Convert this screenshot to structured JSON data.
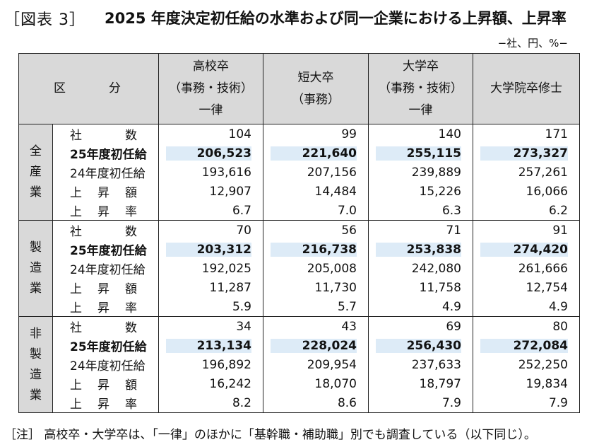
{
  "figure_label": "［図表 3］",
  "title": "2025 年度決定初任給の水準および同一企業における上昇額、上昇率",
  "unit_note": "−社、円、%−",
  "header": {
    "kubun": "区　分",
    "columns": [
      [
        "高校卒",
        "（事務・技術）",
        "一律"
      ],
      [
        "短大卒",
        "（事務）"
      ],
      [
        "大学卒",
        "（事務・技術）",
        "一律"
      ],
      [
        "大学院卒修士"
      ]
    ]
  },
  "row_labels": [
    "社数",
    "25年度初任給",
    "24年度初任給",
    "上昇額",
    "上昇率"
  ],
  "groups": [
    {
      "name": [
        "全",
        "産",
        "業"
      ],
      "rows": [
        [
          "104",
          "99",
          "140",
          "171"
        ],
        [
          "206,523",
          "221,640",
          "255,115",
          "273,327"
        ],
        [
          "193,616",
          "207,156",
          "239,889",
          "257,261"
        ],
        [
          "12,907",
          "14,484",
          "15,226",
          "16,066"
        ],
        [
          "6.7",
          "7.0",
          "6.3",
          "6.2"
        ]
      ]
    },
    {
      "name": [
        "製",
        "造",
        "業"
      ],
      "rows": [
        [
          "70",
          "56",
          "71",
          "91"
        ],
        [
          "203,312",
          "216,738",
          "253,838",
          "274,420"
        ],
        [
          "192,025",
          "205,008",
          "242,080",
          "261,666"
        ],
        [
          "11,287",
          "11,730",
          "11,758",
          "12,754"
        ],
        [
          "5.9",
          "5.7",
          "4.9",
          "4.9"
        ]
      ]
    },
    {
      "name": [
        "非",
        "製",
        "造",
        "業"
      ],
      "rows": [
        [
          "34",
          "43",
          "69",
          "80"
        ],
        [
          "213,134",
          "228,024",
          "256,430",
          "272,084"
        ],
        [
          "196,892",
          "209,954",
          "237,633",
          "252,250"
        ],
        [
          "16,242",
          "18,070",
          "18,797",
          "19,834"
        ],
        [
          "8.2",
          "8.6",
          "7.9",
          "7.9"
        ]
      ]
    }
  ],
  "highlight_color": "#ddebf7",
  "header_bg": "#d9d9d9",
  "note": "［注］ 高校卒・大学卒は、「一律」のほかに「基幹職・補助職」別でも調査している（以下同じ）。"
}
